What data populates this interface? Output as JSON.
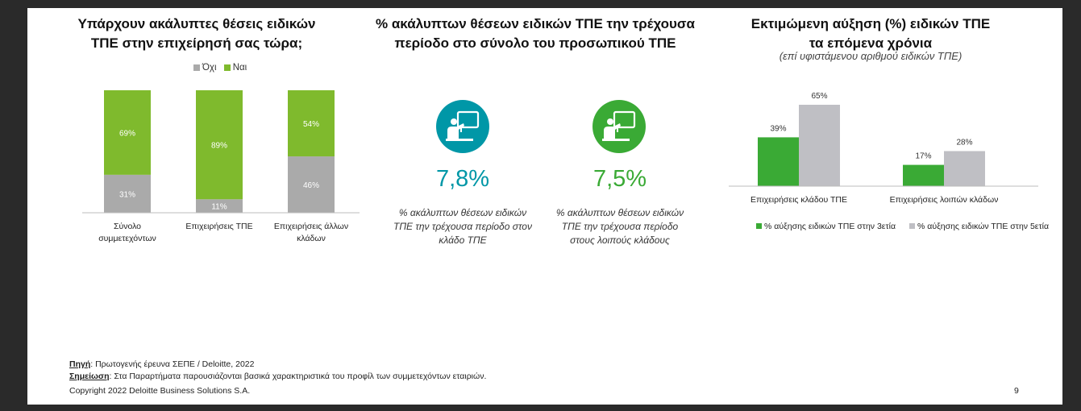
{
  "left": {
    "title_line1": "Υπάρχουν ακάλυπτες θέσεις ειδικών",
    "title_line2": "ΤΠΕ στην επιχείρησή σας τώρα;",
    "legend_no": "Όχι",
    "legend_yes": "Ναι"
  },
  "middle": {
    "title_line1": "% ακάλυπτων θέσεων ειδικών ΤΠΕ την τρέχουσα",
    "title_line2": "περίοδο στο σύνολο του προσωπικού ΤΠΕ",
    "kpi1_value": "7,8%",
    "kpi1_desc_line1": "% ακάλυπτων θέσεων ειδικών",
    "kpi1_desc_line2": "ΤΠΕ την τρέχουσα περίοδο στον",
    "kpi1_desc_line3": "κλάδο ΤΠΕ",
    "kpi2_value": "7,5%",
    "kpi2_desc_line1": "% ακάλυπτων θέσεων ειδικών",
    "kpi2_desc_line2": "ΤΠΕ την τρέχουσα περίοδο",
    "kpi2_desc_line3": "στους λοιπούς κλάδους",
    "kpi1_icon_color": "#0097a7",
    "kpi2_icon_color": "#3aaa35"
  },
  "right": {
    "title_line1": "Εκτιμώμενη αύξηση (%) ειδικών ΤΠΕ",
    "title_line2": "τα επόμενα χρόνια",
    "subtitle": "(επί υφιστάμενου αριθμού ειδικών ΤΠΕ)"
  },
  "footer": {
    "source_label": "Πηγή",
    "source_text": ": Πρωτογενής έρευνα ΣΕΠΕ / Deloitte, 2022",
    "note_label": "Σημείωση",
    "note_text": ": Στα Παραρτήματα παρουσιάζονται βασικά χαρακτηριστικά του προφίλ των συμμετεχόντων εταιριών.",
    "copyright": "Copyright 2022 Deloitte Business Solutions S.A.",
    "page_number": "9"
  },
  "chart_data": [
    {
      "type": "bar",
      "stacked": true,
      "categories": [
        "Σύνολο συμμετεχόντων",
        "Επιχειρήσεις ΤΠΕ",
        "Επιχειρήσεις άλλων κλάδων"
      ],
      "category_lines": [
        [
          "Σύνολο",
          "συμμετεχόντων"
        ],
        [
          "Επιχειρήσεις ΤΠΕ"
        ],
        [
          "Επιχειρήσεις άλλων",
          "κλάδων"
        ]
      ],
      "series": [
        {
          "name": "Όχι",
          "values": [
            31,
            11,
            46
          ],
          "labels": [
            "31%",
            "11%",
            "46%"
          ],
          "color": "#aaaaaa"
        },
        {
          "name": "Ναι",
          "values": [
            69,
            89,
            54
          ],
          "labels": [
            "69%",
            "89%",
            "54%"
          ],
          "color": "#7fba2d"
        }
      ],
      "ylim": [
        0,
        100
      ],
      "legend": "top"
    },
    {
      "type": "bar",
      "categories": [
        "Επιχειρήσεις κλάδου ΤΠΕ",
        "Επιχειρήσεις λοιπών κλάδων"
      ],
      "series": [
        {
          "name": "% αύξησης ειδικών ΤΠΕ στην 3ετία",
          "values": [
            39,
            17
          ],
          "labels": [
            "39%",
            "17%"
          ],
          "color": "#3aaa35"
        },
        {
          "name": "% αύξησης ειδικών ΤΠΕ στην 5ετία",
          "values": [
            65,
            28
          ],
          "labels": [
            "65%",
            "28%"
          ],
          "color": "#bfbfc4"
        }
      ],
      "ylim": [
        0,
        65
      ],
      "legend": "bottom"
    }
  ]
}
